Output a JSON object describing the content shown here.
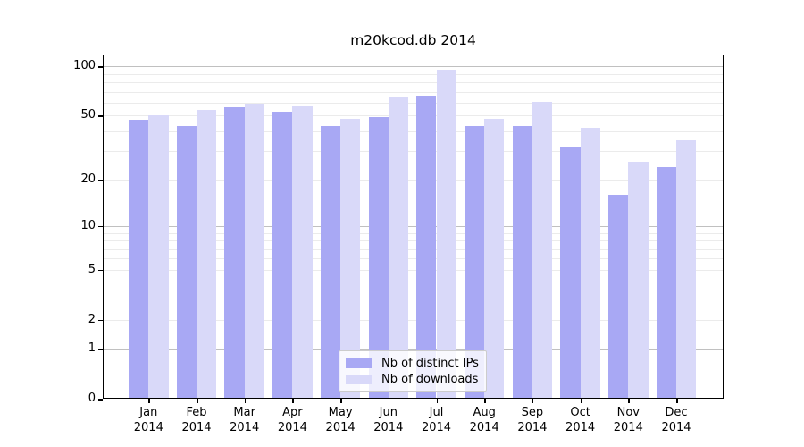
{
  "title": "m20kcod.db 2014",
  "chart_data": {
    "type": "bar",
    "title": "m20kcod.db 2014",
    "x_months": [
      "Jan",
      "Feb",
      "Mar",
      "Apr",
      "May",
      "Jun",
      "Jul",
      "Aug",
      "Sep",
      "Oct",
      "Nov",
      "Dec"
    ],
    "x_year": "2014",
    "series": [
      {
        "name": "Nb of distinct IPs",
        "color": "#a8a8f4",
        "values": [
          47,
          43,
          56,
          53,
          43,
          49,
          66,
          43,
          43,
          32,
          16,
          24
        ]
      },
      {
        "name": "Nb of downloads",
        "color": "#d9d9f9",
        "values": [
          50,
          54,
          59,
          57,
          48,
          65,
          95,
          48,
          61,
          42,
          26,
          35
        ]
      }
    ],
    "y_scale": "log1p",
    "y_ticks": [
      0,
      1,
      2,
      5,
      10,
      20,
      50,
      100
    ],
    "y_tick_labels": [
      "0",
      "1",
      "2",
      "5",
      "10",
      "20",
      "50",
      "100"
    ],
    "y_major_gridlines": [
      1,
      10,
      100
    ],
    "y_minor_gridlines": [
      2,
      3,
      4,
      5,
      6,
      7,
      8,
      9,
      20,
      30,
      40,
      50,
      60,
      70,
      80,
      90
    ],
    "ylim": [
      0,
      118
    ],
    "grid": true,
    "legend_position": "lower center"
  },
  "colors": {
    "grid_major": "#c0c0c0",
    "grid_minor": "#ebebeb",
    "axis": "#000000",
    "legend_border": "#cccccc"
  }
}
